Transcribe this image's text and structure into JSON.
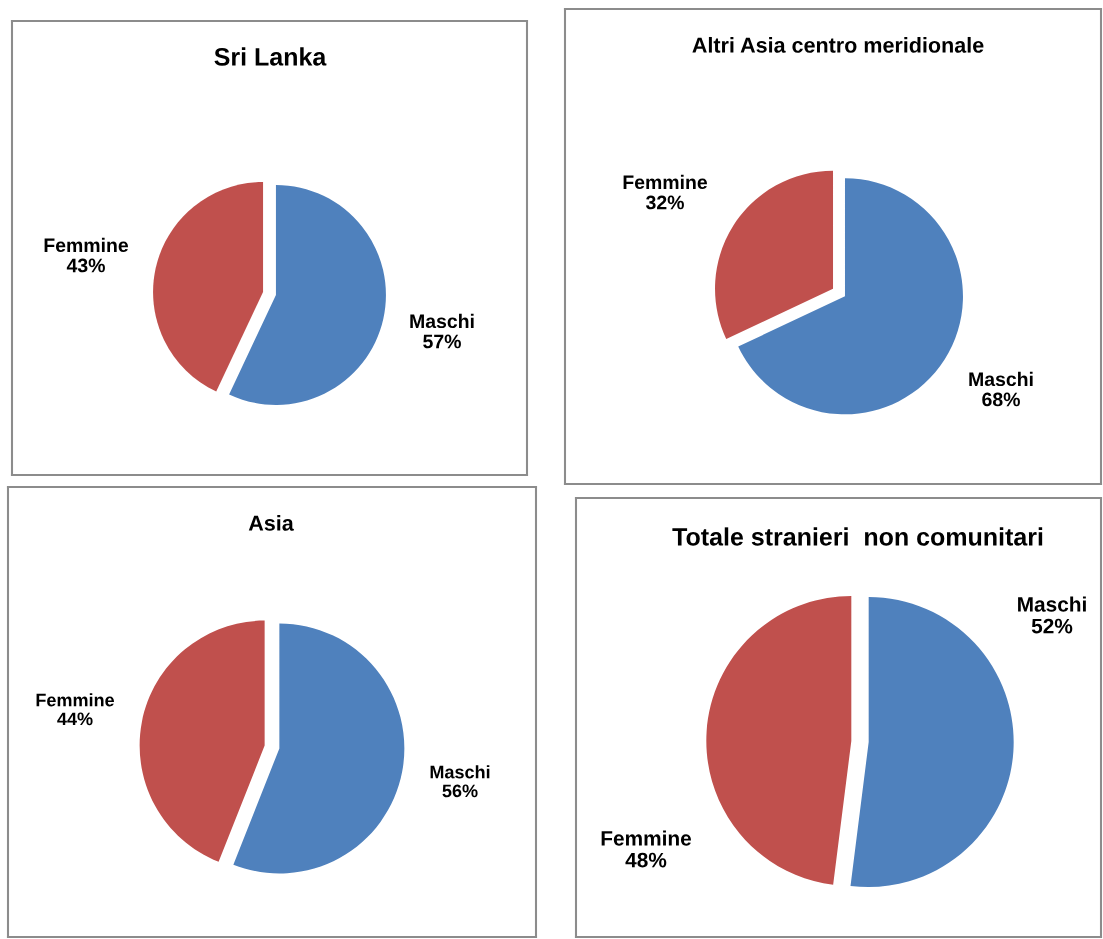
{
  "chart_data": [
    {
      "type": "pie",
      "title": "Sri Lanka",
      "categories": [
        "Maschi",
        "Femmine"
      ],
      "values": [
        57,
        43
      ],
      "value_labels": [
        "57%",
        "43%"
      ],
      "colors": [
        "#4f81bd",
        "#c0504d"
      ]
    },
    {
      "type": "pie",
      "title": "Altri Asia centro meridionale",
      "categories": [
        "Maschi",
        "Femmine"
      ],
      "values": [
        68,
        32
      ],
      "value_labels": [
        "68%",
        "32%"
      ],
      "colors": [
        "#4f81bd",
        "#c0504d"
      ]
    },
    {
      "type": "pie",
      "title": "Asia",
      "categories": [
        "Maschi",
        "Femmine"
      ],
      "values": [
        56,
        44
      ],
      "value_labels": [
        "56%",
        "44%"
      ],
      "colors": [
        "#4f81bd",
        "#c0504d"
      ]
    },
    {
      "type": "pie",
      "title": "Totale stranieri  non comunitari",
      "categories": [
        "Maschi",
        "Femmine"
      ],
      "values": [
        52,
        48
      ],
      "value_labels": [
        "52%",
        "48%"
      ],
      "colors": [
        "#4f81bd",
        "#c0504d"
      ]
    }
  ]
}
